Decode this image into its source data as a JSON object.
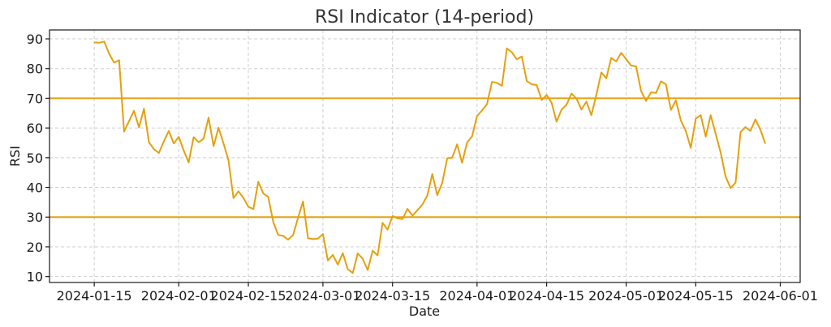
{
  "chart_data": {
    "type": "line",
    "title": "RSI Indicator (14-period)",
    "xlabel": "Date",
    "ylabel": "RSI",
    "x_ticks": [
      "2024-01-15",
      "2024-02-01",
      "2024-02-15",
      "2024-03-01",
      "2024-03-15",
      "2024-04-01",
      "2024-04-15",
      "2024-05-01",
      "2024-05-15",
      "2024-06-01"
    ],
    "y_ticks": [
      10,
      20,
      30,
      40,
      50,
      60,
      70,
      80,
      90
    ],
    "xlim": [
      "2024-01-06",
      "2024-06-05"
    ],
    "ylim": [
      8,
      93
    ],
    "grid": true,
    "colors": {
      "line": "#E5A00D",
      "levels": "#E5A00D"
    },
    "reference_lines": [
      70,
      30
    ],
    "series": [
      {
        "x": [
          "2024-01-15",
          "2024-01-16",
          "2024-01-17",
          "2024-01-18",
          "2024-01-19",
          "2024-01-20",
          "2024-01-21",
          "2024-01-22",
          "2024-01-23",
          "2024-01-24",
          "2024-01-25",
          "2024-01-26",
          "2024-01-27",
          "2024-01-28",
          "2024-01-29",
          "2024-01-30",
          "2024-01-31",
          "2024-02-01",
          "2024-02-02",
          "2024-02-03",
          "2024-02-04",
          "2024-02-05",
          "2024-02-06",
          "2024-02-07",
          "2024-02-08",
          "2024-02-09",
          "2024-02-10",
          "2024-02-11",
          "2024-02-12",
          "2024-02-13",
          "2024-02-14",
          "2024-02-15",
          "2024-02-16",
          "2024-02-17",
          "2024-02-18",
          "2024-02-19",
          "2024-02-20",
          "2024-02-21",
          "2024-02-22",
          "2024-02-23",
          "2024-02-24",
          "2024-02-25",
          "2024-02-26",
          "2024-02-27",
          "2024-02-28",
          "2024-02-29",
          "2024-03-01",
          "2024-03-02",
          "2024-03-03",
          "2024-03-04",
          "2024-03-05",
          "2024-03-06",
          "2024-03-07",
          "2024-03-08",
          "2024-03-09",
          "2024-03-10",
          "2024-03-11",
          "2024-03-12",
          "2024-03-13",
          "2024-03-14",
          "2024-03-15",
          "2024-03-16",
          "2024-03-17",
          "2024-03-18",
          "2024-03-19",
          "2024-03-20",
          "2024-03-21",
          "2024-03-22",
          "2024-03-23",
          "2024-03-24",
          "2024-03-25",
          "2024-03-26",
          "2024-03-27",
          "2024-03-28",
          "2024-03-29",
          "2024-03-30",
          "2024-03-31",
          "2024-04-01",
          "2024-04-02",
          "2024-04-03",
          "2024-04-04",
          "2024-04-05",
          "2024-04-06",
          "2024-04-07",
          "2024-04-08",
          "2024-04-09",
          "2024-04-10",
          "2024-04-11",
          "2024-04-12",
          "2024-04-13",
          "2024-04-14",
          "2024-04-15",
          "2024-04-16",
          "2024-04-17",
          "2024-04-18",
          "2024-04-19",
          "2024-04-20",
          "2024-04-21",
          "2024-04-22",
          "2024-04-23",
          "2024-04-24",
          "2024-04-25",
          "2024-04-26",
          "2024-04-27",
          "2024-04-28",
          "2024-04-29",
          "2024-04-30",
          "2024-05-01",
          "2024-05-02",
          "2024-05-03",
          "2024-05-04",
          "2024-05-05",
          "2024-05-06",
          "2024-05-07",
          "2024-05-08",
          "2024-05-09",
          "2024-05-10",
          "2024-05-11",
          "2024-05-12",
          "2024-05-13",
          "2024-05-14",
          "2024-05-15",
          "2024-05-16",
          "2024-05-17",
          "2024-05-18",
          "2024-05-19",
          "2024-05-20",
          "2024-05-21",
          "2024-05-22",
          "2024-05-23",
          "2024-05-24",
          "2024-05-25",
          "2024-05-26",
          "2024-05-27",
          "2024-05-28",
          "2024-05-29"
        ],
        "values": [
          88.8,
          88.7,
          89.1,
          85.0,
          82.0,
          82.8,
          58.8,
          62.3,
          65.8,
          60.2,
          66.5,
          55.2,
          52.9,
          51.6,
          55.5,
          59.0,
          54.8,
          57.0,
          52.4,
          48.4,
          56.9,
          55.2,
          56.4,
          63.5,
          53.9,
          60.1,
          54.8,
          49.2,
          36.4,
          38.7,
          36.5,
          33.5,
          32.7,
          41.9,
          38.0,
          36.8,
          28.4,
          24.0,
          23.7,
          22.4,
          24.0,
          29.8,
          35.3,
          22.9,
          22.6,
          22.8,
          24.3,
          15.4,
          17.3,
          14.0,
          17.9,
          12.5,
          11.2,
          17.8,
          16.0,
          12.2,
          18.7,
          17.1,
          28.1,
          25.8,
          30.4,
          29.6,
          29.3,
          32.8,
          30.5,
          32.3,
          34.2,
          37.3,
          44.5,
          37.4,
          41.5,
          49.8,
          50.0,
          54.5,
          48.3,
          55.1,
          57.2,
          64.0,
          65.9,
          68.0,
          75.5,
          75.2,
          74.2,
          86.8,
          85.5,
          83.1,
          84.1,
          75.8,
          74.7,
          74.5,
          69.4,
          71.1,
          68.5,
          62.1,
          66.2,
          67.8,
          71.6,
          69.9,
          66.2,
          68.9,
          64.3,
          71.1,
          78.7,
          76.7,
          83.6,
          82.4,
          85.3,
          83.2,
          81.0,
          80.7,
          72.4,
          69.1,
          72.0,
          71.8,
          75.7,
          74.7,
          66.1,
          69.3,
          62.5,
          59.0,
          53.3,
          63.2,
          64.3,
          57.1,
          64.3,
          58.0,
          51.8,
          43.7,
          39.8,
          41.6,
          58.6,
          60.3,
          59.0,
          62.9,
          59.4,
          54.7
        ]
      }
    ]
  }
}
